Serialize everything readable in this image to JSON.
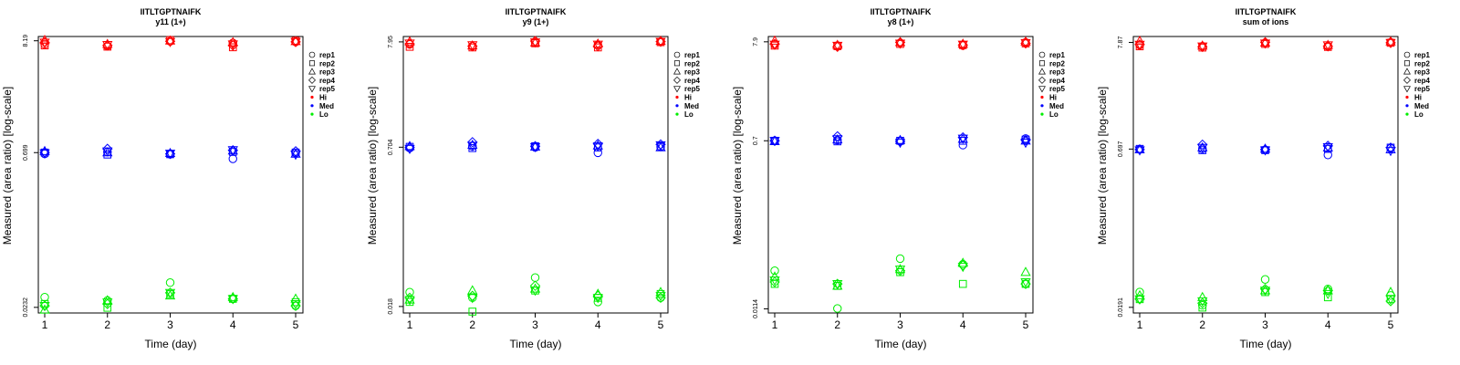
{
  "legend": {
    "entries": [
      "rep1",
      "rep2",
      "rep3",
      "rep4",
      "rep5",
      "Hi",
      "Med",
      "Lo"
    ],
    "rep_symbols": [
      "circle",
      "square",
      "triangle-up",
      "diamond",
      "triangle-down"
    ],
    "level_colors": {
      "Hi": "#ff0000",
      "Med": "#0000ff",
      "Lo": "#00ee00"
    }
  },
  "chart_data": [
    {
      "type": "scatter",
      "title": "IITLTGPTNAIFK",
      "subtitle": "y11 (1+)",
      "xlabel": "Time (day)",
      "ylabel": "Measured (area ratio) [log-scale]",
      "y_scale": "log",
      "x_ticks": [
        "1",
        "2",
        "3",
        "4",
        "5"
      ],
      "y_ticks": [
        "0.0232",
        "0.699",
        "8.19"
      ],
      "ylim": [
        0.0205,
        9.0
      ],
      "grid": false,
      "legend_position": "right",
      "series": [
        {
          "level": "Hi",
          "values": [
            [
              7.6,
              7.3,
              8.1,
              7.8,
              8.0
            ],
            [
              7.4,
              7.2,
              8.3,
              7.1,
              8.2
            ],
            [
              8.3,
              7.6,
              8.2,
              7.9,
              8.1
            ],
            [
              7.9,
              7.4,
              8.1,
              7.4,
              8.0
            ],
            [
              7.9,
              7.5,
              8.0,
              7.6,
              8.0
            ]
          ]
        },
        {
          "level": "Med",
          "values": [
            [
              0.68,
              0.71,
              0.675,
              0.61,
              0.695
            ],
            [
              0.7,
              0.67,
              0.675,
              0.71,
              0.7
            ],
            [
              0.72,
              0.7,
              0.69,
              0.73,
              0.68
            ],
            [
              0.7,
              0.76,
              0.68,
              0.735,
              0.72
            ],
            [
              0.69,
              0.72,
              0.685,
              0.74,
              0.67
            ]
          ]
        },
        {
          "level": "Lo",
          "values": [
            [
              0.029,
              0.027,
              0.04,
              0.028,
              0.024
            ],
            [
              0.025,
              0.023,
              0.031,
              0.028,
              0.026
            ],
            [
              0.022,
              0.027,
              0.03,
              0.029,
              0.028
            ],
            [
              0.024,
              0.025,
              0.032,
              0.028,
              0.024
            ],
            [
              0.024,
              0.026,
              0.032,
              0.028,
              0.025
            ]
          ]
        }
      ]
    },
    {
      "type": "scatter",
      "title": "IITLTGPTNAIFK",
      "subtitle": "y9 (1+)",
      "xlabel": "Time (day)",
      "ylabel": "Measured (area ratio) [log-scale]",
      "y_scale": "log",
      "x_ticks": [
        "1",
        "2",
        "3",
        "4",
        "5"
      ],
      "y_ticks": [
        "0.018",
        "0.704",
        "7.95"
      ],
      "ylim": [
        0.0155,
        9.0
      ],
      "grid": false,
      "legend_position": "right",
      "series": [
        {
          "level": "Hi",
          "values": [
            [
              7.5,
              7.2,
              7.9,
              7.4,
              8.0
            ],
            [
              7.1,
              7.0,
              7.7,
              7.0,
              7.9
            ],
            [
              8.0,
              7.3,
              7.8,
              7.6,
              8.1
            ],
            [
              7.6,
              7.2,
              8.1,
              7.2,
              8.0
            ],
            [
              7.7,
              7.4,
              7.9,
              7.5,
              8.0
            ]
          ]
        },
        {
          "level": "Med",
          "values": [
            [
              0.69,
              0.72,
              0.7,
              0.62,
              0.71
            ],
            [
              0.71,
              0.69,
              0.72,
              0.7,
              0.72
            ],
            [
              0.72,
              0.74,
              0.71,
              0.73,
              0.7
            ],
            [
              0.7,
              0.79,
              0.72,
              0.76,
              0.75
            ],
            [
              0.68,
              0.73,
              0.71,
              0.72,
              0.74
            ]
          ]
        },
        {
          "level": "Lo",
          "values": [
            [
              0.025,
              0.022,
              0.035,
              0.02,
              0.022
            ],
            [
              0.02,
              0.016,
              0.026,
              0.022,
              0.024
            ],
            [
              0.021,
              0.026,
              0.027,
              0.024,
              0.025
            ],
            [
              0.022,
              0.023,
              0.029,
              0.023,
              0.022
            ],
            [
              0.021,
              0.022,
              0.026,
              0.022,
              0.023
            ]
          ]
        }
      ]
    },
    {
      "type": "scatter",
      "title": "IITLTGPTNAIFK",
      "subtitle": "y8 (1+)",
      "xlabel": "Time (day)",
      "ylabel": "Measured (area ratio) [log-scale]",
      "y_scale": "log",
      "x_ticks": [
        "1",
        "2",
        "3",
        "4",
        "5"
      ],
      "y_ticks": [
        "0.0114",
        "0.7",
        "7.9"
      ],
      "ylim": [
        0.0103,
        9.0
      ],
      "grid": false,
      "legend_position": "right",
      "series": [
        {
          "level": "Hi",
          "values": [
            [
              7.4,
              7.2,
              7.7,
              7.2,
              7.8
            ],
            [
              7.2,
              7.1,
              7.5,
              7.3,
              7.6
            ],
            [
              8.1,
              7.3,
              7.8,
              7.5,
              7.9
            ],
            [
              7.5,
              7.0,
              7.8,
              7.3,
              7.6
            ],
            [
              7.4,
              7.2,
              7.6,
              7.4,
              7.7
            ]
          ]
        },
        {
          "level": "Med",
          "values": [
            [
              0.7,
              0.71,
              0.69,
              0.63,
              0.74
            ],
            [
              0.7,
              0.69,
              0.7,
              0.7,
              0.72
            ],
            [
              0.69,
              0.72,
              0.71,
              0.73,
              0.7
            ],
            [
              0.7,
              0.78,
              0.69,
              0.76,
              0.71
            ],
            [
              0.7,
              0.73,
              0.67,
              0.74,
              0.67
            ]
          ]
        },
        {
          "level": "Lo",
          "values": [
            [
              0.029,
              0.0115,
              0.039,
              0.034,
              0.021
            ],
            [
              0.021,
              0.02,
              0.028,
              0.021,
              0.021
            ],
            [
              0.025,
              0.02,
              0.03,
              0.035,
              0.028
            ],
            [
              0.022,
              0.021,
              0.029,
              0.033,
              0.021
            ],
            [
              0.023,
              0.021,
              0.03,
              0.032,
              0.022
            ]
          ]
        }
      ]
    },
    {
      "type": "scatter",
      "title": "IITLTGPTNAIFK",
      "subtitle": "sum of ions",
      "xlabel": "Time (day)",
      "ylabel": "Measured (area ratio) [log-scale]",
      "y_scale": "log",
      "x_ticks": [
        "1",
        "2",
        "3",
        "4",
        "5"
      ],
      "y_ticks": [
        "0.0191",
        "0.697",
        "7.87"
      ],
      "ylim": [
        0.0168,
        9.0
      ],
      "grid": false,
      "legend_position": "right",
      "series": [
        {
          "level": "Hi",
          "values": [
            [
              7.4,
              7.2,
              7.8,
              7.2,
              7.9
            ],
            [
              7.2,
              7.0,
              7.6,
              7.1,
              7.8
            ],
            [
              8.1,
              7.3,
              7.8,
              7.4,
              8.0
            ],
            [
              7.5,
              7.1,
              7.9,
              7.2,
              7.8
            ],
            [
              7.5,
              7.2,
              7.7,
              7.4,
              7.8
            ]
          ]
        },
        {
          "level": "Med",
          "values": [
            [
              0.69,
              0.7,
              0.685,
              0.61,
              0.71
            ],
            [
              0.7,
              0.68,
              0.68,
              0.7,
              0.72
            ],
            [
              0.69,
              0.72,
              0.7,
              0.72,
              0.69
            ],
            [
              0.69,
              0.77,
              0.69,
              0.75,
              0.72
            ],
            [
              0.68,
              0.72,
              0.68,
              0.73,
              0.67
            ]
          ]
        },
        {
          "level": "Lo",
          "values": [
            [
              0.027,
              0.02,
              0.036,
              0.029,
              0.025
            ],
            [
              0.023,
              0.019,
              0.027,
              0.024,
              0.023
            ],
            [
              0.025,
              0.024,
              0.028,
              0.028,
              0.027
            ],
            [
              0.023,
              0.021,
              0.029,
              0.028,
              0.022
            ],
            [
              0.023,
              0.022,
              0.028,
              0.026,
              0.023
            ]
          ]
        }
      ]
    }
  ]
}
